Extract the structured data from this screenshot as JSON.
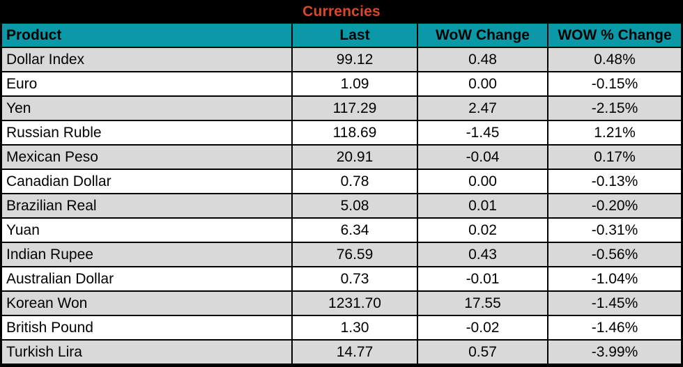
{
  "title": "Currencies",
  "colors": {
    "title_text": "#d8492b",
    "title_bg": "#000000",
    "header_bg": "#0b99a8",
    "row_shaded": "#d9d9d9",
    "row_plain": "#ffffff",
    "grid_lines": "#000000",
    "text": "#000000"
  },
  "chart_data": {
    "type": "table",
    "title": "Currencies",
    "columns": [
      "Product",
      "Last",
      "WoW Change",
      "WOW % Change"
    ],
    "rows": [
      {
        "product": "Dollar Index",
        "last": "99.12",
        "wow_change": "0.48",
        "wow_pct_change": "0.48%"
      },
      {
        "product": "Euro",
        "last": "1.09",
        "wow_change": "0.00",
        "wow_pct_change": "-0.15%"
      },
      {
        "product": "Yen",
        "last": "117.29",
        "wow_change": "2.47",
        "wow_pct_change": "-2.15%"
      },
      {
        "product": "Russian Ruble",
        "last": "118.69",
        "wow_change": "-1.45",
        "wow_pct_change": "1.21%"
      },
      {
        "product": "Mexican Peso",
        "last": "20.91",
        "wow_change": "-0.04",
        "wow_pct_change": "0.17%"
      },
      {
        "product": "Canadian Dollar",
        "last": "0.78",
        "wow_change": "0.00",
        "wow_pct_change": "-0.13%"
      },
      {
        "product": "Brazilian Real",
        "last": "5.08",
        "wow_change": "0.01",
        "wow_pct_change": "-0.20%"
      },
      {
        "product": "Yuan",
        "last": "6.34",
        "wow_change": "0.02",
        "wow_pct_change": "-0.31%"
      },
      {
        "product": "Indian Rupee",
        "last": "76.59",
        "wow_change": "0.43",
        "wow_pct_change": "-0.56%"
      },
      {
        "product": "Australian Dollar",
        "last": "0.73",
        "wow_change": "-0.01",
        "wow_pct_change": "-1.04%"
      },
      {
        "product": "Korean Won",
        "last": "1231.70",
        "wow_change": "17.55",
        "wow_pct_change": "-1.45%"
      },
      {
        "product": "British Pound",
        "last": "1.30",
        "wow_change": "-0.02",
        "wow_pct_change": "-1.46%"
      },
      {
        "product": "Turkish Lira",
        "last": "14.77",
        "wow_change": "0.57",
        "wow_pct_change": "-3.99%"
      }
    ]
  }
}
